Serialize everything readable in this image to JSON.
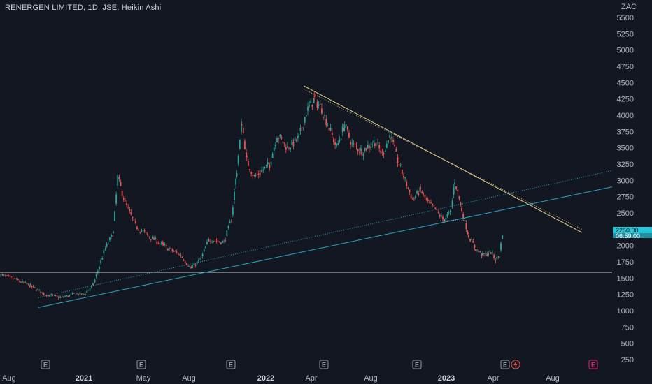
{
  "header": {
    "title": "RENERGEN LIMITED, 1D, JSE, Heikin Ashi",
    "currency": "ZAC"
  },
  "price_label": {
    "price": "2250.00",
    "countdown": "06:59:00"
  },
  "earnings_markers": [
    "E",
    "E",
    "E",
    "E",
    "E",
    "E",
    "E"
  ],
  "colors": {
    "background": "#131722",
    "up": "#26a69a",
    "down": "#ef5350",
    "upper_trend": "#e2d18c",
    "channel": "#2aa6c2",
    "support": "#ffffff",
    "price_tag": "#26c6da"
  },
  "chart_data": {
    "type": "candlestick",
    "title": "RENERGEN LIMITED, 1D, JSE, Heikin Ashi",
    "y_unit": "ZAC",
    "ylim": [
      230,
      5650
    ],
    "y_ticks": [
      250,
      500,
      750,
      1000,
      1250,
      1500,
      1750,
      2000,
      2250,
      2500,
      2750,
      3000,
      3250,
      3500,
      3750,
      4000,
      4250,
      4500,
      4750,
      5000,
      5250,
      5500
    ],
    "x_ticks": [
      "Aug",
      "2021",
      "May",
      "Aug",
      "2022",
      "Apr",
      "Aug",
      "2023",
      "Apr",
      "Aug"
    ],
    "x_ticks_bold": [
      "2021",
      "2022",
      "2023"
    ],
    "price_path": [
      [
        "2020-07-15",
        1550
      ],
      [
        "2020-08-15",
        1480
      ],
      [
        "2020-09-15",
        1380
      ],
      [
        "2020-10-15",
        1250
      ],
      [
        "2020-11-15",
        1200
      ],
      [
        "2020-12-15",
        1260
      ],
      [
        "2021-01-01",
        1250
      ],
      [
        "2021-01-20",
        1400
      ],
      [
        "2021-02-10",
        1900
      ],
      [
        "2021-03-01",
        2200
      ],
      [
        "2021-03-10",
        3050
      ],
      [
        "2021-03-25",
        2650
      ],
      [
        "2021-04-15",
        2300
      ],
      [
        "2021-05-10",
        2150
      ],
      [
        "2021-06-10",
        2000
      ],
      [
        "2021-07-15",
        1850
      ],
      [
        "2021-08-05",
        1650
      ],
      [
        "2021-08-25",
        1800
      ],
      [
        "2021-09-10",
        2100
      ],
      [
        "2021-10-10",
        2050
      ],
      [
        "2021-10-25",
        2400
      ],
      [
        "2021-11-05",
        3150
      ],
      [
        "2021-11-15",
        3900
      ],
      [
        "2021-11-25",
        3300
      ],
      [
        "2021-12-10",
        3050
      ],
      [
        "2022-01-10",
        3250
      ],
      [
        "2022-01-25",
        3700
      ],
      [
        "2022-02-15",
        3500
      ],
      [
        "2022-03-10",
        3650
      ],
      [
        "2022-03-25",
        4050
      ],
      [
        "2022-04-10",
        4250
      ],
      [
        "2022-04-25",
        4100
      ],
      [
        "2022-05-10",
        3800
      ],
      [
        "2022-05-25",
        3500
      ],
      [
        "2022-06-10",
        3850
      ],
      [
        "2022-06-25",
        3550
      ],
      [
        "2022-07-15",
        3450
      ],
      [
        "2022-08-10",
        3600
      ],
      [
        "2022-08-25",
        3400
      ],
      [
        "2022-09-10",
        3700
      ],
      [
        "2022-09-25",
        3300
      ],
      [
        "2022-10-10",
        3000
      ],
      [
        "2022-10-25",
        2700
      ],
      [
        "2022-11-10",
        2850
      ],
      [
        "2022-11-25",
        2650
      ],
      [
        "2022-12-10",
        2550
      ],
      [
        "2022-12-25",
        2400
      ],
      [
        "2023-01-10",
        2500
      ],
      [
        "2023-01-18",
        3000
      ],
      [
        "2023-02-01",
        2550
      ],
      [
        "2023-02-15",
        2150
      ],
      [
        "2023-03-01",
        1950
      ],
      [
        "2023-03-15",
        1850
      ],
      [
        "2023-04-01",
        1900
      ],
      [
        "2023-04-10",
        1780
      ],
      [
        "2023-04-18",
        1850
      ],
      [
        "2023-04-25",
        2250
      ]
    ],
    "lines": [
      {
        "kind": "horizontal",
        "price": 1590,
        "color": "#ffffff"
      },
      {
        "kind": "trend",
        "color": "#2aa6c2",
        "from": [
          "2020-10-01",
          1050
        ],
        "to": [
          "2023-12-01",
          2900
        ]
      },
      {
        "kind": "trend_dotted",
        "color": "#2aa6c2",
        "from": [
          "2020-10-01",
          1200
        ],
        "to": [
          "2023-12-01",
          3150
        ]
      },
      {
        "kind": "trend",
        "color": "#e2d18c",
        "from": [
          "2022-03-20",
          4450
        ],
        "to": [
          "2023-10-01",
          2200
        ]
      },
      {
        "kind": "trend_dotted",
        "color": "#e2d18c",
        "from": [
          "2022-03-20",
          4400
        ],
        "to": [
          "2023-10-01",
          2250
        ]
      },
      {
        "kind": "horizontal_dotted",
        "price": 2380,
        "color": "#ffffff",
        "from": "2022-12-20",
        "to": "2023-02-10"
      }
    ]
  }
}
